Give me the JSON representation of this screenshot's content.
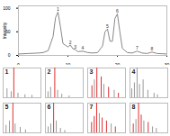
{
  "chart_data": [
    {
      "type": "line",
      "y_label": "Intensity",
      "color": "#888888",
      "x": [
        0,
        2,
        4,
        5,
        6,
        7,
        7.5,
        8,
        8.5,
        9,
        10,
        10.5,
        11,
        11.5,
        12,
        13,
        14,
        15,
        16,
        17,
        17.5,
        18,
        18.5,
        19,
        19.5,
        20,
        20.5,
        21,
        22,
        23,
        24,
        25,
        26,
        27,
        28,
        30
      ],
      "values": [
        3,
        4,
        5,
        6,
        10,
        40,
        80,
        92,
        60,
        25,
        18,
        22,
        14,
        12,
        8,
        9,
        6,
        5,
        6,
        20,
        50,
        56,
        30,
        30,
        78,
        88,
        50,
        15,
        6,
        5,
        9,
        5,
        4,
        7,
        4,
        3
      ],
      "xlim": [
        0,
        30
      ],
      "xticks": [
        0,
        10,
        20,
        30
      ],
      "ylim": [
        0,
        105
      ],
      "yticks": [
        0,
        50,
        100
      ],
      "annotations": [
        {
          "x": 8,
          "y": 92,
          "text": "1"
        },
        {
          "x": 10.5,
          "y": 22,
          "text": "2"
        },
        {
          "x": 11.5,
          "y": 12,
          "text": "3"
        },
        {
          "x": 13,
          "y": 9,
          "text": "4"
        },
        {
          "x": 18,
          "y": 56,
          "text": "5"
        },
        {
          "x": 20,
          "y": 88,
          "text": "6"
        },
        {
          "x": 24,
          "y": 9,
          "text": "7"
        },
        {
          "x": 27,
          "y": 7,
          "text": "8"
        }
      ]
    },
    {
      "type": "bar",
      "title": "1",
      "tick_labels": false,
      "xlim": [
        50,
        450
      ],
      "ylim": [
        0,
        100
      ],
      "x": [
        91,
        135,
        163,
        207,
        281,
        355
      ],
      "values": [
        30,
        20,
        100,
        15,
        10,
        8
      ],
      "colors": [
        "#999999",
        "#999999",
        "#e03030",
        "#999999",
        "#999999",
        "#999999"
      ]
    },
    {
      "type": "bar",
      "title": "2",
      "tick_labels": false,
      "xlim": [
        50,
        450
      ],
      "ylim": [
        0,
        100
      ],
      "x": [
        77,
        105,
        149,
        179,
        223,
        301
      ],
      "values": [
        20,
        35,
        100,
        25,
        12,
        6
      ],
      "colors": [
        "#999999",
        "#999999",
        "#e03030",
        "#999999",
        "#999999",
        "#999999"
      ]
    },
    {
      "type": "bar",
      "title": "3",
      "tick_labels": false,
      "xlim": [
        50,
        450
      ],
      "ylim": [
        0,
        100
      ],
      "x": [
        95,
        121,
        147,
        193,
        221,
        271,
        331,
        375
      ],
      "values": [
        40,
        60,
        100,
        70,
        45,
        35,
        25,
        15
      ],
      "colors": [
        "#e03030",
        "#999999",
        "#e03030",
        "#e03030",
        "#999999",
        "#e03030",
        "#999999",
        "#e03030"
      ]
    },
    {
      "type": "bar",
      "title": "4",
      "tick_labels": false,
      "xlim": [
        50,
        450
      ],
      "ylim": [
        0,
        100
      ],
      "x": [
        69,
        97,
        125,
        151,
        189,
        239,
        305,
        341
      ],
      "values": [
        30,
        50,
        100,
        45,
        60,
        25,
        15,
        10
      ],
      "colors": [
        "#999999",
        "#999999",
        "#999999",
        "#999999",
        "#999999",
        "#999999",
        "#999999",
        "#999999"
      ]
    },
    {
      "type": "bar",
      "title": "5",
      "tick_labels": false,
      "xlim": [
        50,
        450
      ],
      "ylim": [
        0,
        100
      ],
      "x": [
        81,
        117,
        153,
        177,
        231,
        287
      ],
      "values": [
        25,
        40,
        100,
        30,
        18,
        10
      ],
      "colors": [
        "#999999",
        "#999999",
        "#e03030",
        "#999999",
        "#999999",
        "#999999"
      ]
    },
    {
      "type": "bar",
      "title": "6",
      "tick_labels": false,
      "xlim": [
        50,
        450
      ],
      "ylim": [
        0,
        100
      ],
      "x": [
        79,
        107,
        137,
        165,
        209,
        255
      ],
      "values": [
        20,
        30,
        100,
        40,
        15,
        8
      ],
      "colors": [
        "#999999",
        "#999999",
        "#e03030",
        "#999999",
        "#999999",
        "#999999"
      ]
    },
    {
      "type": "bar",
      "title": "7",
      "tick_labels": false,
      "xlim": [
        50,
        450
      ],
      "ylim": [
        0,
        100
      ],
      "x": [
        91,
        119,
        145,
        173,
        203,
        249,
        299,
        343
      ],
      "values": [
        35,
        55,
        100,
        65,
        50,
        40,
        30,
        20
      ],
      "colors": [
        "#e03030",
        "#e03030",
        "#e03030",
        "#999999",
        "#e03030",
        "#e03030",
        "#999999",
        "#e03030"
      ]
    },
    {
      "type": "bar",
      "title": "8",
      "tick_labels": false,
      "xlim": [
        50,
        450
      ],
      "ylim": [
        0,
        100
      ],
      "x": [
        85,
        113,
        141,
        169,
        197,
        243,
        289,
        329
      ],
      "values": [
        30,
        45,
        100,
        60,
        40,
        35,
        20,
        15
      ],
      "colors": [
        "#e03030",
        "#999999",
        "#e03030",
        "#e03030",
        "#999999",
        "#e03030",
        "#999999",
        "#999999"
      ]
    }
  ]
}
